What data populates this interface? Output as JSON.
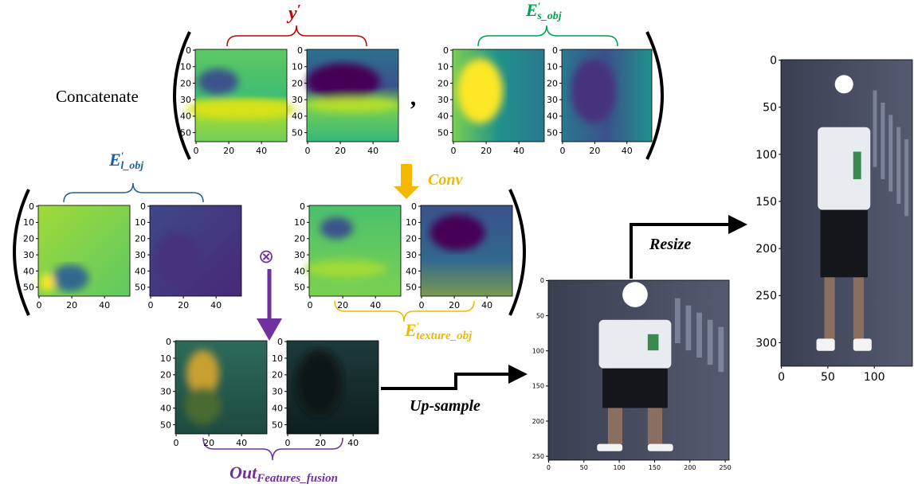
{
  "labels": {
    "concatenate": "Concatenate",
    "comma": ",",
    "y": {
      "base": "y",
      "sup": "′"
    },
    "e_s": {
      "base": "E",
      "sup": "′",
      "sub": "s_obj"
    },
    "e_l": {
      "base": "E",
      "sup": "′",
      "sub": "l_obj"
    },
    "conv": "Conv",
    "e_texture": {
      "base": "E",
      "sup": "′",
      "sub": "texture_obj"
    },
    "otimes": "⊗",
    "out": {
      "base": "Out",
      "sub": "Features_fusion"
    },
    "upsample": "Up-sample",
    "resize": "Resize"
  },
  "panels": [
    {
      "xticks": [
        0,
        20,
        40
      ],
      "yticks": [
        0,
        10,
        20,
        30,
        40,
        50
      ],
      "xlim": [
        -0.5,
        55.5
      ],
      "ylim": [
        -0.5,
        55.5
      ]
    },
    {
      "xticks": [
        0,
        20,
        40
      ],
      "yticks": [
        0,
        10,
        20,
        30,
        40,
        50
      ],
      "xlim": [
        -0.5,
        55.5
      ],
      "ylim": [
        -0.5,
        55.5
      ]
    },
    {
      "xticks": [
        0,
        20,
        40
      ],
      "yticks": [
        0,
        10,
        20,
        30,
        40,
        50
      ],
      "xlim": [
        -0.5,
        55.5
      ],
      "ylim": [
        -0.5,
        55.5
      ]
    },
    {
      "xticks": [
        0,
        20,
        40
      ],
      "yticks": [
        0,
        10,
        20,
        30,
        40,
        50
      ],
      "xlim": [
        -0.5,
        55.5
      ],
      "ylim": [
        -0.5,
        55.5
      ]
    },
    {
      "xticks": [
        0,
        20,
        40
      ],
      "yticks": [
        0,
        10,
        20,
        30,
        40,
        50
      ],
      "xlim": [
        -0.5,
        55.5
      ],
      "ylim": [
        -0.5,
        55.5
      ]
    },
    {
      "xticks": [
        0,
        20,
        40
      ],
      "yticks": [
        0,
        10,
        20,
        30,
        40,
        50
      ],
      "xlim": [
        -0.5,
        55.5
      ],
      "ylim": [
        -0.5,
        55.5
      ]
    },
    {
      "xticks": [
        0,
        20,
        40
      ],
      "yticks": [
        0,
        10,
        20,
        30,
        40,
        50
      ],
      "xlim": [
        -0.5,
        55.5
      ],
      "ylim": [
        -0.5,
        55.5
      ]
    },
    {
      "xticks": [
        0,
        20,
        40
      ],
      "yticks": [
        0,
        10,
        20,
        30,
        40,
        50
      ],
      "xlim": [
        -0.5,
        55.5
      ],
      "ylim": [
        -0.5,
        55.5
      ]
    },
    {
      "xticks": [
        0,
        20,
        40
      ],
      "yticks": [
        0,
        10,
        20,
        30,
        40,
        50
      ],
      "xlim": [
        -0.5,
        55.5
      ],
      "ylim": [
        -0.5,
        55.5
      ]
    },
    {
      "xticks": [
        0,
        20,
        40
      ],
      "yticks": [
        0,
        10,
        20,
        30,
        40,
        50
      ],
      "xlim": [
        -0.5,
        55.5
      ],
      "ylim": [
        -0.5,
        55.5
      ]
    },
    {
      "xticks": [
        0,
        50,
        100,
        150,
        200,
        250
      ],
      "yticks": [
        0,
        50,
        100,
        150,
        200,
        250
      ],
      "xlim": [
        -0.5,
        255.5
      ],
      "ylim": [
        -0.5,
        255.5
      ]
    },
    {
      "xticks": [
        0,
        50,
        100
      ],
      "yticks": [
        0,
        50,
        100,
        150,
        200,
        250,
        300
      ],
      "xlim": [
        -0.5,
        141
      ],
      "ylim": [
        -0.5,
        325
      ]
    }
  ]
}
